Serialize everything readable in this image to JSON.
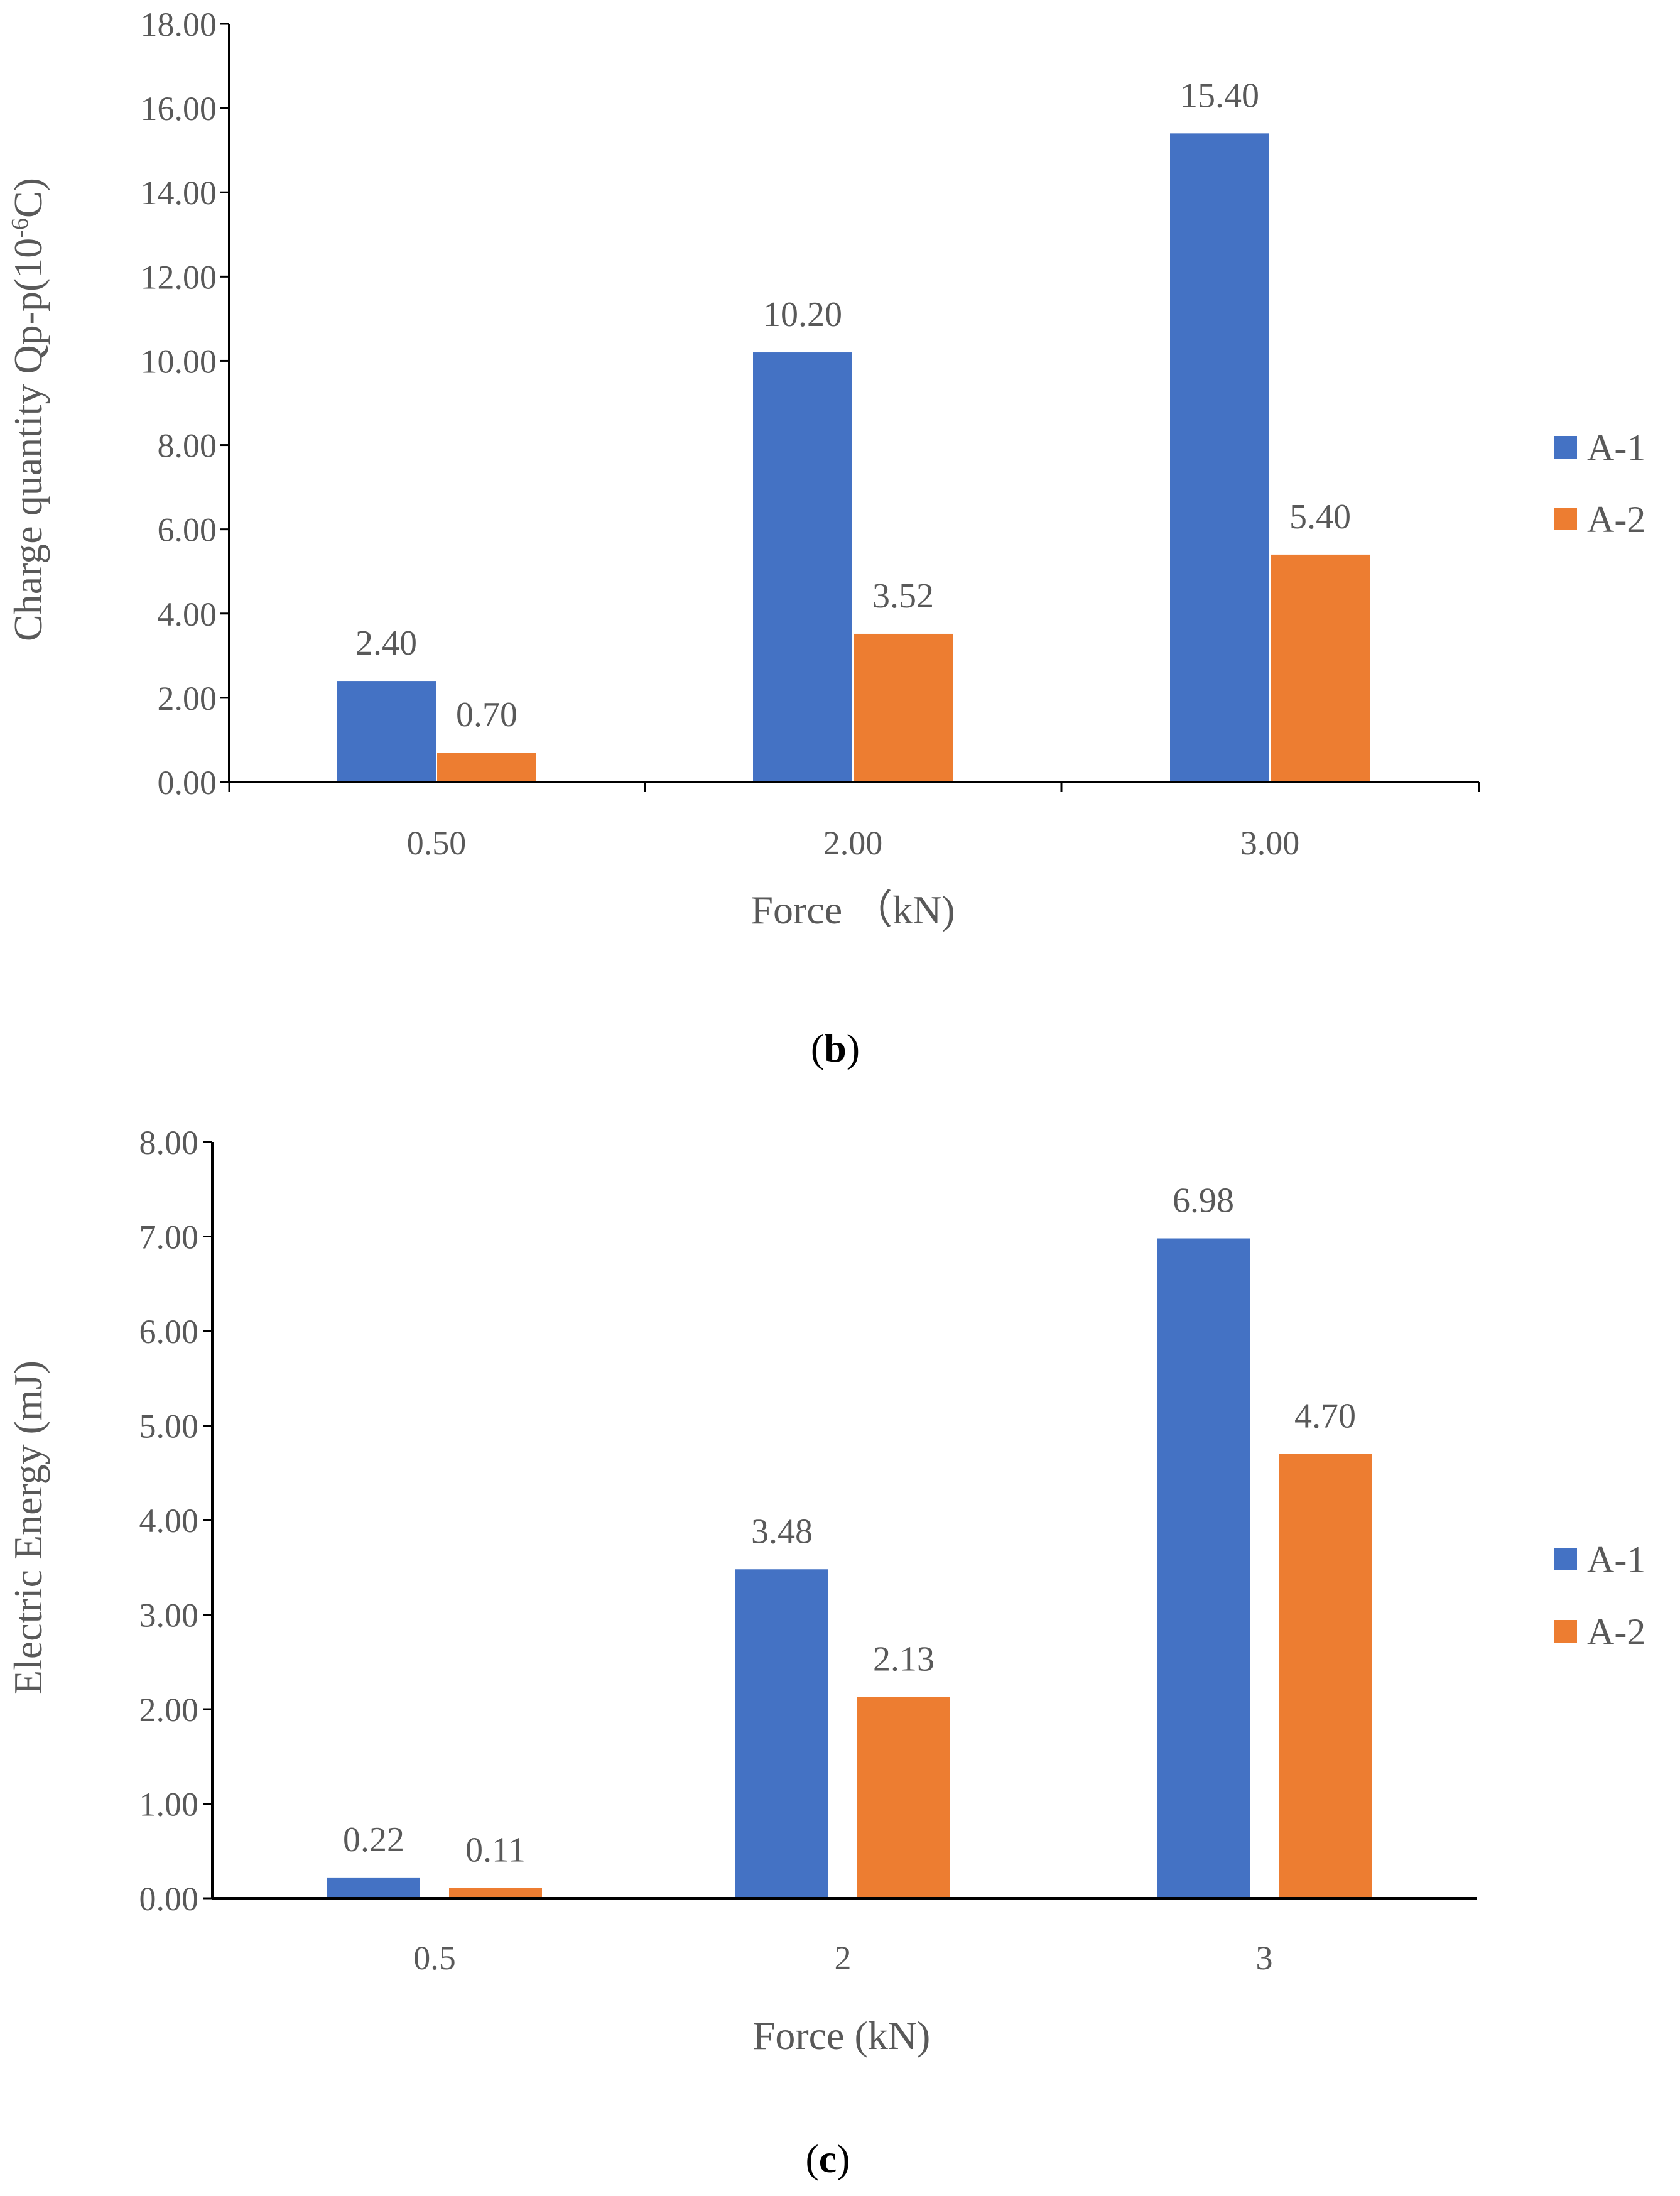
{
  "colors": {
    "series_a1": "#4472C4",
    "series_a2": "#ED7D31",
    "axis": "#000000",
    "text": "#595959"
  },
  "chart_data": [
    {
      "type": "bar",
      "panel_label": "b",
      "categories": [
        "0.50",
        "2.00",
        "3.00"
      ],
      "series": [
        {
          "name": "A-1",
          "values": [
            2.4,
            10.2,
            15.4
          ],
          "labels": [
            "2.40",
            "10.20",
            "15.40"
          ]
        },
        {
          "name": "A-2",
          "values": [
            0.7,
            3.52,
            5.4
          ],
          "labels": [
            "0.70",
            "3.52",
            "5.40"
          ]
        }
      ],
      "xlabel": "Force （kN)",
      "ylabel": {
        "pre": "Charge quantity Qp-p(10",
        "sup": "-6",
        "post": "C)"
      },
      "ylim": [
        0,
        18
      ],
      "yticks": [
        "0.00",
        "2.00",
        "4.00",
        "6.00",
        "8.00",
        "10.00",
        "12.00",
        "14.00",
        "16.00",
        "18.00"
      ],
      "legend_position": "right"
    },
    {
      "type": "bar",
      "panel_label": "c",
      "categories": [
        "0.5",
        "2",
        "3"
      ],
      "series": [
        {
          "name": "A-1",
          "values": [
            0.22,
            3.48,
            6.98
          ],
          "labels": [
            "0.22",
            "3.48",
            "6.98"
          ]
        },
        {
          "name": "A-2",
          "values": [
            0.11,
            2.13,
            4.7
          ],
          "labels": [
            "0.11",
            "2.13",
            "4.70"
          ]
        }
      ],
      "xlabel": "Force (kN)",
      "ylabel": {
        "pre": "Electric Energy (mJ)",
        "sup": "",
        "post": ""
      },
      "ylim": [
        0,
        8
      ],
      "yticks": [
        "0.00",
        "1.00",
        "2.00",
        "3.00",
        "4.00",
        "5.00",
        "6.00",
        "7.00",
        "8.00"
      ],
      "legend_position": "right"
    }
  ]
}
